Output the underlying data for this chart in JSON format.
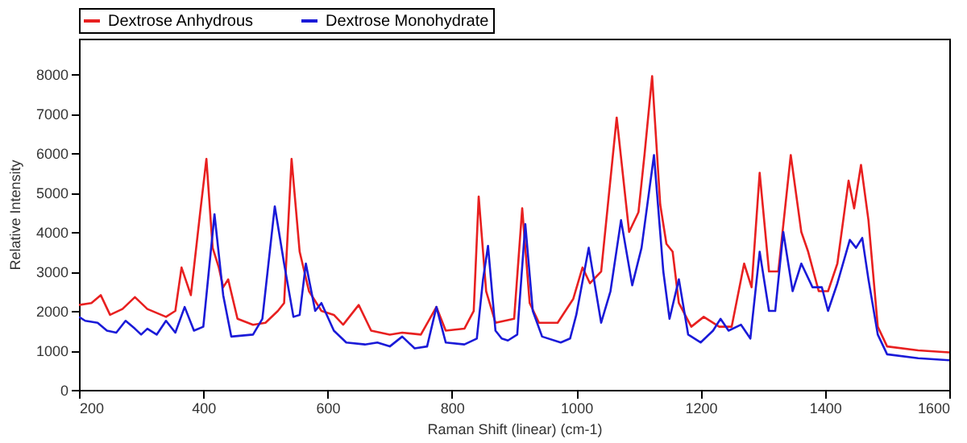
{
  "chart_data": {
    "type": "line",
    "xlabel": "Raman Shift (linear) (cm-1)",
    "ylabel": "Relative Intensity",
    "xlim": [
      200,
      1600
    ],
    "ylim": [
      0,
      8900
    ],
    "xticks": [
      200,
      400,
      600,
      800,
      1000,
      1200,
      1400,
      1600
    ],
    "yticks": [
      0,
      1000,
      2000,
      3000,
      4000,
      5000,
      6000,
      7000,
      8000
    ],
    "grid": false,
    "legend": "top",
    "marker": "none",
    "line_style": "solid",
    "series": [
      {
        "name": "Dextrose Anhydrous",
        "color": "#e82020",
        "x": [
          200,
          220,
          235,
          250,
          270,
          290,
          310,
          340,
          355,
          365,
          380,
          395,
          405,
          415,
          425,
          432,
          440,
          455,
          480,
          500,
          520,
          530,
          542,
          555,
          570,
          590,
          610,
          625,
          650,
          670,
          700,
          720,
          750,
          775,
          790,
          820,
          835,
          843,
          855,
          870,
          900,
          913,
          925,
          940,
          970,
          995,
          1010,
          1022,
          1040,
          1065,
          1085,
          1100,
          1110,
          1122,
          1135,
          1145,
          1155,
          1165,
          1185,
          1205,
          1230,
          1250,
          1270,
          1282,
          1295,
          1310,
          1325,
          1345,
          1362,
          1373,
          1390,
          1405,
          1420,
          1438,
          1447,
          1458,
          1470,
          1485,
          1500,
          1550,
          1600
        ],
        "values": [
          2150,
          2200,
          2400,
          1900,
          2050,
          2350,
          2050,
          1850,
          2000,
          3100,
          2400,
          4500,
          5850,
          3600,
          3100,
          2600,
          2800,
          1800,
          1650,
          1700,
          2000,
          2200,
          5850,
          3500,
          2500,
          2000,
          1900,
          1650,
          2150,
          1500,
          1400,
          1450,
          1400,
          2100,
          1500,
          1550,
          2000,
          4900,
          2500,
          1700,
          1800,
          4600,
          2200,
          1700,
          1700,
          2300,
          3100,
          2700,
          3000,
          6900,
          4000,
          4500,
          6000,
          7950,
          4700,
          3700,
          3500,
          2200,
          1600,
          1850,
          1600,
          1600,
          3200,
          2600,
          5500,
          3000,
          3000,
          5950,
          4000,
          3500,
          2500,
          2500,
          3200,
          5300,
          4600,
          5700,
          4300,
          1600,
          1100,
          1000,
          950
        ]
      },
      {
        "name": "Dextrose Monohydrate",
        "color": "#1a1ad8",
        "x": [
          200,
          210,
          230,
          245,
          260,
          275,
          290,
          300,
          310,
          325,
          340,
          355,
          370,
          385,
          400,
          418,
          432,
          445,
          480,
          495,
          515,
          530,
          545,
          555,
          565,
          580,
          590,
          610,
          630,
          660,
          680,
          700,
          720,
          740,
          760,
          775,
          790,
          820,
          840,
          850,
          858,
          870,
          880,
          890,
          905,
          918,
          930,
          945,
          975,
          990,
          1000,
          1020,
          1040,
          1055,
          1072,
          1090,
          1105,
          1125,
          1140,
          1150,
          1165,
          1180,
          1200,
          1220,
          1232,
          1245,
          1265,
          1280,
          1295,
          1310,
          1320,
          1333,
          1348,
          1362,
          1380,
          1395,
          1405,
          1420,
          1440,
          1450,
          1460,
          1470,
          1485,
          1500,
          1550,
          1600
        ],
        "values": [
          1850,
          1750,
          1700,
          1500,
          1450,
          1750,
          1550,
          1400,
          1550,
          1400,
          1750,
          1450,
          2100,
          1500,
          1600,
          4450,
          2400,
          1350,
          1400,
          1800,
          4650,
          3200,
          1850,
          1900,
          3200,
          2000,
          2200,
          1500,
          1200,
          1150,
          1200,
          1100,
          1350,
          1050,
          1100,
          2100,
          1200,
          1150,
          1300,
          2800,
          3650,
          1500,
          1300,
          1250,
          1400,
          4200,
          2000,
          1350,
          1200,
          1300,
          1900,
          3600,
          1700,
          2500,
          4300,
          2650,
          3600,
          5950,
          3000,
          1800,
          2800,
          1400,
          1200,
          1500,
          1800,
          1500,
          1650,
          1300,
          3500,
          2000,
          2000,
          4000,
          2500,
          3200,
          2600,
          2600,
          2000,
          2700,
          3800,
          3600,
          3850,
          2800,
          1400,
          900,
          800,
          750
        ]
      }
    ]
  }
}
